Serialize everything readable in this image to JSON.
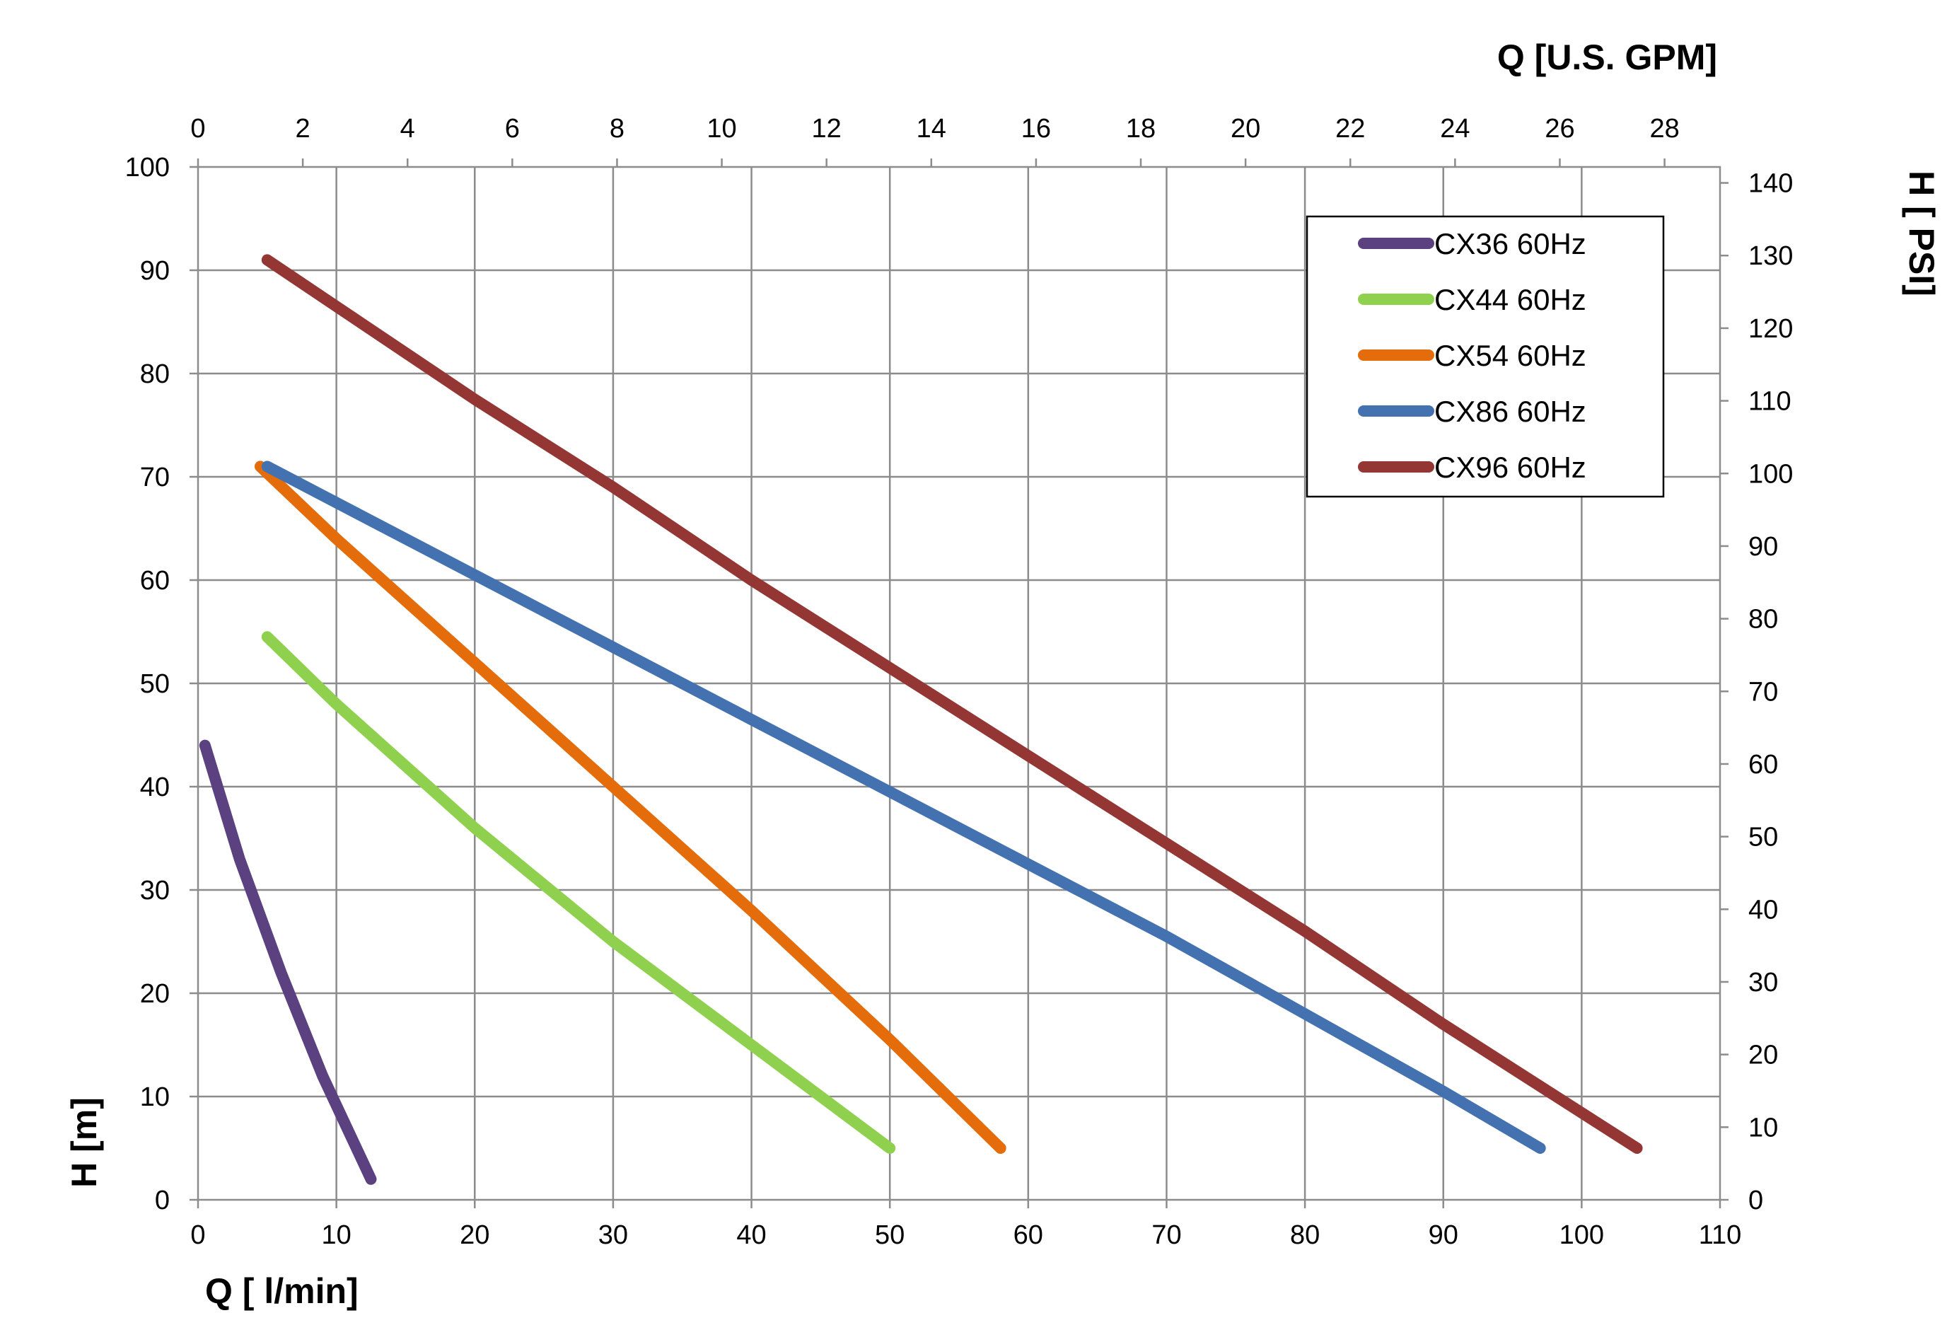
{
  "chart_data": {
    "type": "line",
    "x_axis": {
      "label": "Q [ l/min]",
      "range": [
        0,
        110
      ],
      "ticks": [
        0,
        10,
        20,
        30,
        40,
        50,
        60,
        70,
        80,
        90,
        100,
        110
      ]
    },
    "x2_axis": {
      "label": "Q  [U.S. GPM]",
      "ticks": [
        0,
        2,
        4,
        6,
        8,
        10,
        12,
        14,
        16,
        18,
        20,
        22,
        24,
        26,
        28
      ]
    },
    "y_axis": {
      "label": "H [m]",
      "range": [
        0,
        100
      ],
      "ticks": [
        0,
        10,
        20,
        30,
        40,
        50,
        60,
        70,
        80,
        90,
        100
      ]
    },
    "y2_axis": {
      "label": "H [ PSI]",
      "ticks": [
        0,
        10,
        20,
        30,
        40,
        50,
        60,
        70,
        80,
        90,
        100,
        110,
        120,
        130,
        140
      ]
    },
    "grid": true,
    "legend": "top-right",
    "series": [
      {
        "name": "CX36 60Hz",
        "color": "#5b4180",
        "points": [
          [
            0.5,
            44
          ],
          [
            3,
            33
          ],
          [
            6,
            22
          ],
          [
            9,
            12
          ],
          [
            12.5,
            2
          ]
        ]
      },
      {
        "name": "CX44 60Hz",
        "color": "#8fd14f",
        "points": [
          [
            5,
            54.5
          ],
          [
            10,
            48
          ],
          [
            20,
            36
          ],
          [
            30,
            25
          ],
          [
            40,
            15
          ],
          [
            50,
            5
          ]
        ]
      },
      {
        "name": "CX54 60Hz",
        "color": "#e46c0a",
        "points": [
          [
            4.5,
            71
          ],
          [
            10,
            64
          ],
          [
            20,
            52
          ],
          [
            30,
            40
          ],
          [
            40,
            28
          ],
          [
            50,
            15.5
          ],
          [
            58,
            5
          ]
        ]
      },
      {
        "name": "CX86 60Hz",
        "color": "#4472b0",
        "points": [
          [
            5,
            71
          ],
          [
            10,
            67.5
          ],
          [
            20,
            60.5
          ],
          [
            30,
            53.5
          ],
          [
            40,
            46.5
          ],
          [
            50,
            39.5
          ],
          [
            60,
            32.5
          ],
          [
            70,
            25.5
          ],
          [
            80,
            18
          ],
          [
            90,
            10.5
          ],
          [
            97,
            5
          ]
        ]
      },
      {
        "name": "CX96 60Hz",
        "color": "#943634",
        "points": [
          [
            5,
            91
          ],
          [
            10,
            86.5
          ],
          [
            20,
            77.5
          ],
          [
            30,
            69
          ],
          [
            40,
            60
          ],
          [
            50,
            51.5
          ],
          [
            60,
            43
          ],
          [
            70,
            34.5
          ],
          [
            80,
            26
          ],
          [
            90,
            17
          ],
          [
            104,
            5
          ]
        ]
      }
    ]
  }
}
